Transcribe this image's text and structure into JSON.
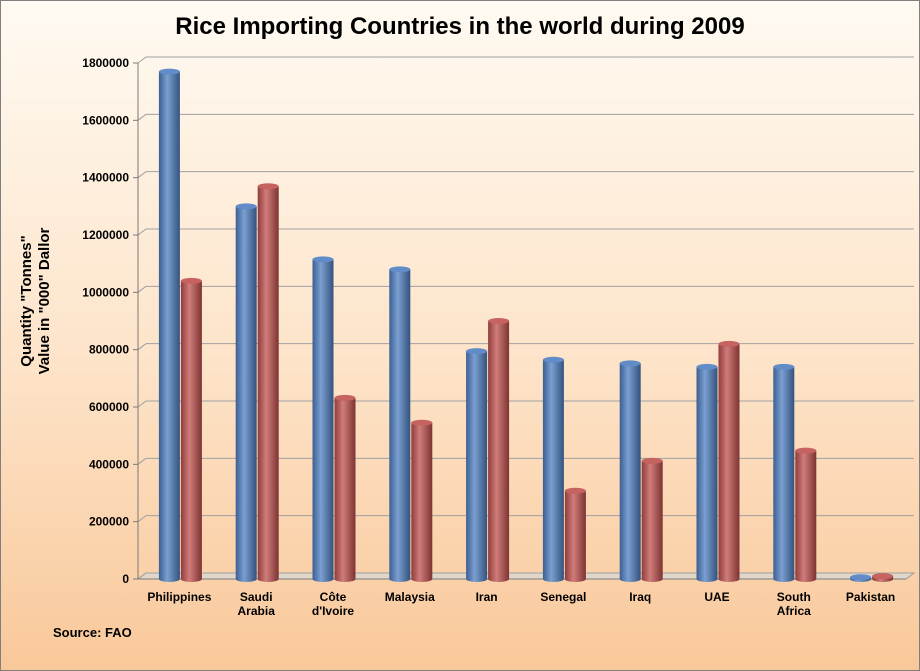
{
  "chart_data": {
    "type": "bar",
    "title": "Rice Importing Countries in the world during 2009",
    "ylabel_lines": [
      "Quantity \"Tonnes\"",
      "Value in \"000\" Dallor"
    ],
    "source": "Source: FAO",
    "ylim": [
      0,
      1800000
    ],
    "yticks": [
      "0",
      "200000",
      "400000",
      "600000",
      "800000",
      "1000000",
      "1200000",
      "1400000",
      "1600000",
      "1800000"
    ],
    "categories": [
      [
        "Philippines"
      ],
      [
        "Saudi",
        "Arabia"
      ],
      [
        "Côte",
        "d'Ivoire"
      ],
      [
        "Malaysia"
      ],
      [
        "Iran"
      ],
      [
        "Senegal"
      ],
      [
        "Iraq"
      ],
      [
        "UAE"
      ],
      [
        "South",
        "Africa"
      ],
      [
        "Pakistan"
      ]
    ],
    "series": [
      {
        "color": "#4f7fc2",
        "values": [
          1770000,
          1300000,
          1115000,
          1080000,
          795000,
          765000,
          752000,
          740000,
          740000,
          6000
        ]
      },
      {
        "color": "#c0504d",
        "values": [
          1040000,
          1370000,
          632000,
          545000,
          900000,
          308000,
          412000,
          820000,
          448000,
          10000
        ]
      }
    ],
    "grid": true
  }
}
